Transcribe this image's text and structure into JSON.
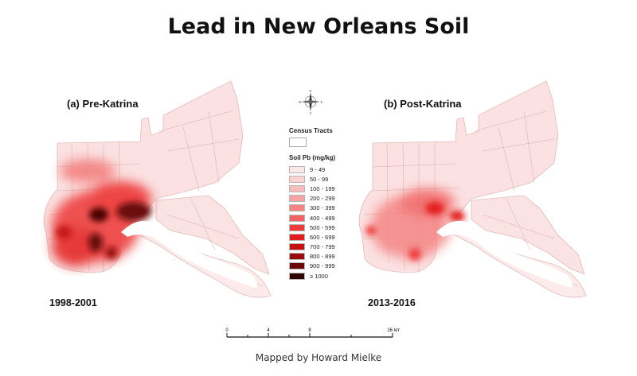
{
  "title": "Lead in New Orleans Soil",
  "panels": [
    {
      "label": "(a) Pre-Katrina",
      "period": "1998-2001"
    },
    {
      "label": "(b) Post-Katrina",
      "period": "2013-2016"
    }
  ],
  "legend": {
    "tracts_title": "Census Tracts",
    "pb_title": "Soil Pb (mg/kg)",
    "classes": [
      {
        "label": "9 - 49",
        "color": "#fde8e8"
      },
      {
        "label": "50 - 99",
        "color": "#fbd3d3"
      },
      {
        "label": "100 - 199",
        "color": "#f9bcbc"
      },
      {
        "label": "200 - 299",
        "color": "#f7a3a3"
      },
      {
        "label": "300 - 399",
        "color": "#f48585"
      },
      {
        "label": "400 - 499",
        "color": "#f16363"
      },
      {
        "label": "500 - 599",
        "color": "#ee3c3c"
      },
      {
        "label": "600 - 699",
        "color": "#e21d1d"
      },
      {
        "label": "700 - 799",
        "color": "#c41212"
      },
      {
        "label": "800 - 899",
        "color": "#9a0c0c"
      },
      {
        "label": "900 - 999",
        "color": "#6a0808"
      },
      {
        "label": "≥ 1000",
        "color": "#2f0404"
      }
    ]
  },
  "compass_letters": {
    "n": "N",
    "s": "S",
    "e": "E",
    "w": "W"
  },
  "scale": {
    "ticks": [
      "0",
      "4",
      "8",
      "16"
    ],
    "unit": "km"
  },
  "credit": "Mapped by Howard Mielke"
}
